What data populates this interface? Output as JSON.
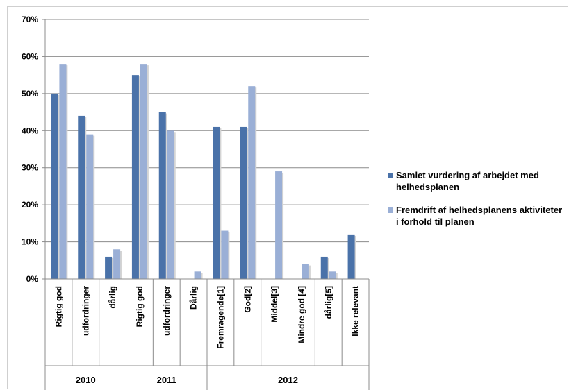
{
  "chart_data": {
    "type": "bar",
    "ylim": [
      0,
      0.7
    ],
    "y_ticks": [
      "0%",
      "10%",
      "20%",
      "30%",
      "40%",
      "50%",
      "60%",
      "70%"
    ],
    "categories": [
      "Rigtig god",
      "udfordringer",
      "dårlig",
      "Rigtig god",
      "udfordringer",
      "Dårlig",
      "Fremragende[1]",
      "God[2]",
      "Middel[3]",
      "Mindre god [4]",
      "dårlig[5]",
      "Ikke relevant"
    ],
    "groups": [
      {
        "label": "2010",
        "count": 3
      },
      {
        "label": "2011",
        "count": 3
      },
      {
        "label": "2012",
        "count": 6
      }
    ],
    "series": [
      {
        "name": "Samlet vurdering af arbejdet med helhedsplanen",
        "color": "#4a72a9",
        "values": [
          0.5,
          0.44,
          0.06,
          0.55,
          0.45,
          0.0,
          0.41,
          0.41,
          0.0,
          0.0,
          0.06,
          0.12
        ]
      },
      {
        "name": "Fremdrift af helhedsplanens aktiviteter i forhold til planen",
        "color": "#9aafd6",
        "values": [
          0.58,
          0.39,
          0.08,
          0.58,
          0.4,
          0.02,
          0.13,
          0.52,
          0.29,
          0.04,
          0.02,
          0.0
        ]
      }
    ],
    "grid": true,
    "legend_position": "right"
  }
}
